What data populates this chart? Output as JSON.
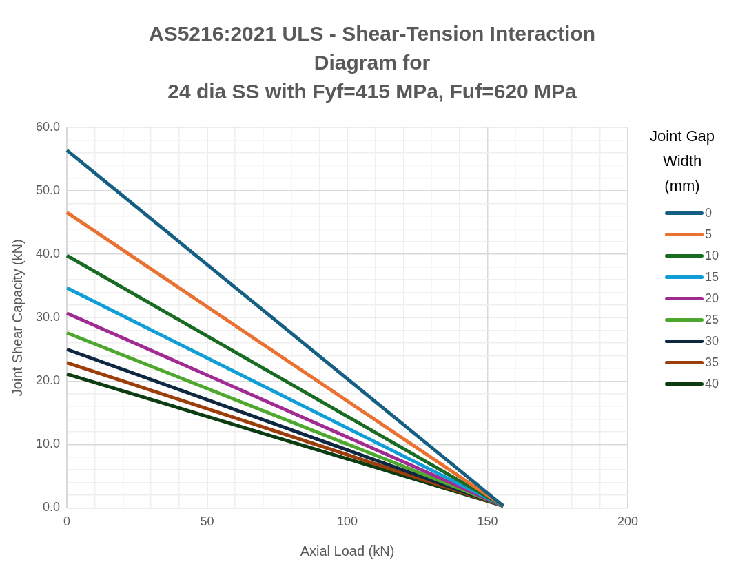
{
  "chart_data": {
    "type": "line",
    "title": "AS5216:2021 ULS - Shear-Tension Interaction Diagram for\n24 dia SS with Fyf=415 MPa, Fuf=620 MPa",
    "xlabel": "Axial Load (kN)",
    "ylabel": "Joint Shear Capacity (kN)",
    "legend_title": "Joint Gap Width (mm)",
    "legend": "right",
    "grid": true,
    "marker": "none",
    "line_style": "solid",
    "xlim": [
      0,
      200
    ],
    "ylim": [
      0,
      60
    ],
    "x": [
      0,
      155.6
    ],
    "xticks": [
      0,
      {
        "value": 10,
        "label": null
      },
      {
        "value": 20,
        "label": null
      },
      {
        "value": 30,
        "label": null
      },
      {
        "value": 40,
        "label": null
      },
      50,
      {
        "value": 60,
        "label": null
      },
      {
        "value": 70,
        "label": null
      },
      {
        "value": 80,
        "label": null
      },
      {
        "value": 90,
        "label": null
      },
      100,
      {
        "value": 110,
        "label": null
      },
      {
        "value": 120,
        "label": null
      },
      {
        "value": 130,
        "label": null
      },
      {
        "value": 140,
        "label": null
      },
      150,
      {
        "value": 160,
        "label": null
      },
      {
        "value": 170,
        "label": null
      },
      {
        "value": 180,
        "label": null
      },
      {
        "value": 190,
        "label": null
      },
      200
    ],
    "yticks": [
      {
        "value": 0,
        "label": "0.0"
      },
      {
        "value": 2,
        "label": null
      },
      {
        "value": 4,
        "label": null
      },
      {
        "value": 6,
        "label": null
      },
      {
        "value": 8,
        "label": null
      },
      {
        "value": 10,
        "label": "10.0"
      },
      {
        "value": 12,
        "label": null
      },
      {
        "value": 14,
        "label": null
      },
      {
        "value": 16,
        "label": null
      },
      {
        "value": 18,
        "label": null
      },
      {
        "value": 20,
        "label": "20.0"
      },
      {
        "value": 22,
        "label": null
      },
      {
        "value": 24,
        "label": null
      },
      {
        "value": 26,
        "label": null
      },
      {
        "value": 28,
        "label": null
      },
      {
        "value": 30,
        "label": "30.0"
      },
      {
        "value": 32,
        "label": null
      },
      {
        "value": 34,
        "label": null
      },
      {
        "value": 36,
        "label": null
      },
      {
        "value": 38,
        "label": null
      },
      {
        "value": 40,
        "label": "40.0"
      },
      {
        "value": 42,
        "label": null
      },
      {
        "value": 44,
        "label": null
      },
      {
        "value": 46,
        "label": null
      },
      {
        "value": 48,
        "label": null
      },
      {
        "value": 50,
        "label": "50.0"
      },
      {
        "value": 52,
        "label": null
      },
      {
        "value": 54,
        "label": null
      },
      {
        "value": 56,
        "label": null
      },
      {
        "value": 58,
        "label": null
      },
      {
        "value": 60,
        "label": "60.0"
      }
    ],
    "series": [
      {
        "name": "0",
        "color": "#156082",
        "values": [
          56.4,
          0.3
        ]
      },
      {
        "name": "5",
        "color": "#e97132",
        "values": [
          46.6,
          0.3
        ]
      },
      {
        "name": "10",
        "color": "#196b24",
        "values": [
          39.8,
          0.3
        ]
      },
      {
        "name": "15",
        "color": "#0f9ed5",
        "values": [
          34.7,
          0.3
        ]
      },
      {
        "name": "20",
        "color": "#a02b93",
        "values": [
          30.7,
          0.3
        ]
      },
      {
        "name": "25",
        "color": "#4ea72e",
        "values": [
          27.6,
          0.3
        ]
      },
      {
        "name": "30",
        "color": "#0e2841",
        "values": [
          25.0,
          0.3
        ]
      },
      {
        "name": "35",
        "color": "#9c3e0b",
        "values": [
          22.9,
          0.3
        ]
      },
      {
        "name": "40",
        "color": "#0c3d12",
        "values": [
          21.1,
          0.3
        ]
      }
    ]
  }
}
